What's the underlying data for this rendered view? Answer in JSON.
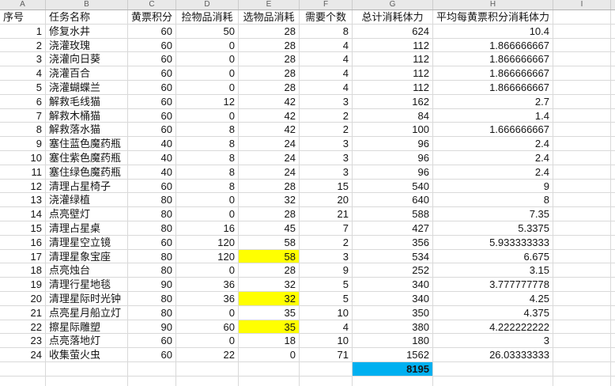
{
  "sheet": {
    "column_letters": [
      "A",
      "B",
      "C",
      "D",
      "E",
      "F",
      "G",
      "H",
      "I"
    ],
    "headers": [
      "序号",
      "任务名称",
      "黄票积分",
      "捡物品消耗",
      "选物品消耗",
      "需要个数",
      "总计消耗体力",
      "平均每黄票积分消耗体力"
    ],
    "rows": [
      [
        "1",
        "修复水井",
        "60",
        "50",
        "28",
        "8",
        "624",
        "10.4"
      ],
      [
        "2",
        "浇灌玫瑰",
        "60",
        "0",
        "28",
        "4",
        "112",
        "1.866666667"
      ],
      [
        "3",
        "浇灌向日葵",
        "60",
        "0",
        "28",
        "4",
        "112",
        "1.866666667"
      ],
      [
        "4",
        "浇灌百合",
        "60",
        "0",
        "28",
        "4",
        "112",
        "1.866666667"
      ],
      [
        "5",
        "浇灌蝴蝶兰",
        "60",
        "0",
        "28",
        "4",
        "112",
        "1.866666667"
      ],
      [
        "6",
        "解救毛线猫",
        "60",
        "12",
        "42",
        "3",
        "162",
        "2.7"
      ],
      [
        "7",
        "解救木桶猫",
        "60",
        "0",
        "42",
        "2",
        "84",
        "1.4"
      ],
      [
        "8",
        "解救落水猫",
        "60",
        "8",
        "42",
        "2",
        "100",
        "1.666666667"
      ],
      [
        "9",
        "塞住蓝色魔药瓶",
        "40",
        "8",
        "24",
        "3",
        "96",
        "2.4"
      ],
      [
        "10",
        "塞住紫色魔药瓶",
        "40",
        "8",
        "24",
        "3",
        "96",
        "2.4"
      ],
      [
        "11",
        "塞住绿色魔药瓶",
        "40",
        "8",
        "24",
        "3",
        "96",
        "2.4"
      ],
      [
        "12",
        "清理占星椅子",
        "60",
        "8",
        "28",
        "15",
        "540",
        "9"
      ],
      [
        "13",
        "浇灌绿植",
        "80",
        "0",
        "32",
        "20",
        "640",
        "8"
      ],
      [
        "14",
        "点亮壁灯",
        "80",
        "0",
        "28",
        "21",
        "588",
        "7.35"
      ],
      [
        "15",
        "清理占星桌",
        "80",
        "16",
        "45",
        "7",
        "427",
        "5.3375"
      ],
      [
        "16",
        "清理星空立镜",
        "60",
        "120",
        "58",
        "2",
        "356",
        "5.933333333"
      ],
      [
        "17",
        "清理星象宝座",
        "80",
        "120",
        "58",
        "3",
        "534",
        "6.675"
      ],
      [
        "18",
        "点亮烛台",
        "80",
        "0",
        "28",
        "9",
        "252",
        "3.15"
      ],
      [
        "19",
        "清理行星地毯",
        "90",
        "36",
        "32",
        "5",
        "340",
        "3.777777778"
      ],
      [
        "20",
        "清理星际时光钟",
        "80",
        "36",
        "32",
        "5",
        "340",
        "4.25"
      ],
      [
        "21",
        "点亮星月船立灯",
        "80",
        "0",
        "35",
        "10",
        "350",
        "4.375"
      ],
      [
        "22",
        "擦星际雕塑",
        "90",
        "60",
        "35",
        "4",
        "380",
        "4.222222222"
      ],
      [
        "23",
        "点亮落地灯",
        "60",
        "0",
        "18",
        "10",
        "180",
        "3"
      ],
      [
        "24",
        "收集萤火虫",
        "60",
        "22",
        "0",
        "71",
        "1562",
        "26.03333333"
      ]
    ],
    "yellow_highlight_rows": [
      17,
      20,
      22
    ],
    "yellow_highlight_column": "E",
    "total": "8195",
    "colors": {
      "yellow_highlight": "#ffff00",
      "cyan_highlight": "#00b0f0"
    }
  }
}
